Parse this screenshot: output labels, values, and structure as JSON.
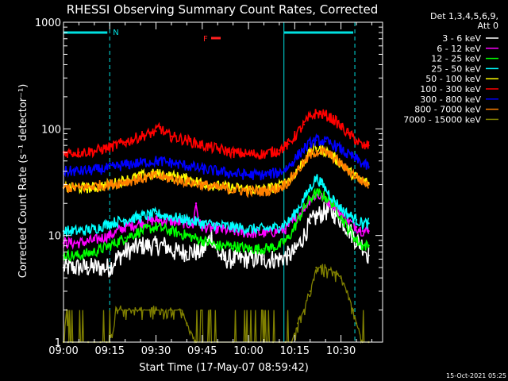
{
  "chart_data": {
    "type": "line",
    "title": "RHESSI Observing Summary Count Rates, Corrected",
    "xlabel": "Start Time (17-May-07 08:59:42)",
    "ylabel": "Corrected Count Rate (s⁻¹ detector⁻¹)",
    "yscale": "log",
    "ylim": [
      1,
      1000
    ],
    "xlim_minutes": [
      0,
      41
    ],
    "x_ticks": [
      {
        "m": 0,
        "label": "09:00"
      },
      {
        "m": 15,
        "label": "09:15"
      },
      {
        "m": 30,
        "label": "09:30"
      },
      {
        "m": 45,
        "label": "09:45"
      },
      {
        "m": 60,
        "label": "10:00"
      },
      {
        "m": 75,
        "label": "10:15"
      },
      {
        "m": 90,
        "label": "10:30"
      }
    ],
    "y_ticks": [
      {
        "v": 1,
        "label": "1"
      },
      {
        "v": 10,
        "label": "10"
      },
      {
        "v": 100,
        "label": "100"
      },
      {
        "v": 1000,
        "label": "1000"
      }
    ],
    "legend_header": [
      "Det 1,3,4,5,6,9,",
      "Att 0"
    ],
    "legend_position": "right",
    "annotations": {
      "night_label": "N",
      "flare_label": "F"
    },
    "timestamp": "15-Oct-2021 05:25",
    "series": [
      {
        "name": "3 - 6 keV",
        "color": "#ffffff",
        "x": [
          0,
          3,
          5,
          8,
          10,
          12,
          15,
          17,
          20,
          25,
          28,
          30,
          33,
          36,
          38,
          40,
          43,
          45,
          48,
          50,
          52,
          55,
          60,
          65,
          68,
          70,
          73,
          75,
          78,
          80,
          82,
          85,
          88,
          90,
          92,
          95,
          97,
          99
        ],
        "y": [
          5,
          5,
          5,
          5,
          5,
          5,
          5,
          6,
          7,
          8,
          8,
          8,
          8,
          7,
          7,
          7,
          7,
          7,
          10,
          7,
          6,
          6,
          6,
          6,
          6,
          6,
          6.5,
          7,
          10,
          13,
          15,
          17,
          16,
          14,
          12,
          9,
          8,
          6.5
        ]
      },
      {
        "name": "6 - 12 keV",
        "color": "#ff00ff",
        "x": [
          0,
          5,
          10,
          15,
          20,
          25,
          30,
          35,
          40,
          42,
          43,
          44,
          45,
          50,
          55,
          60,
          65,
          70,
          72,
          75,
          78,
          80,
          82,
          85,
          88,
          90,
          92,
          95,
          97,
          99
        ],
        "y": [
          8.5,
          8.5,
          9,
          10,
          12,
          13,
          14,
          13.5,
          13,
          12.5,
          20,
          13,
          12,
          11.5,
          11,
          10.5,
          10.5,
          11,
          11.5,
          14,
          18,
          22,
          24,
          22,
          19,
          16,
          14,
          12,
          11,
          11
        ]
      },
      {
        "name": "12 - 25 keV",
        "color": "#00ff00",
        "x": [
          0,
          5,
          10,
          15,
          20,
          25,
          30,
          35,
          40,
          45,
          50,
          55,
          60,
          65,
          70,
          73,
          75,
          78,
          80,
          82,
          85,
          88,
          90,
          92,
          95,
          97,
          99
        ],
        "y": [
          6.5,
          6.5,
          7,
          8,
          9.5,
          11,
          12,
          11,
          10,
          9,
          8,
          8,
          7.5,
          7.5,
          8,
          9.5,
          12,
          18,
          22,
          25,
          23,
          19,
          15,
          12,
          9,
          8,
          8
        ]
      },
      {
        "name": "25 - 50 keV",
        "color": "#00ffff",
        "x": [
          0,
          5,
          10,
          15,
          20,
          25,
          30,
          35,
          40,
          45,
          50,
          55,
          60,
          65,
          70,
          73,
          75,
          78,
          80,
          82,
          84,
          86,
          88,
          90,
          92,
          95,
          97,
          99
        ],
        "y": [
          11,
          11,
          11.5,
          13,
          14,
          15,
          16,
          15,
          14,
          13,
          12.5,
          12,
          11.5,
          11.5,
          12,
          13.5,
          16,
          22,
          28,
          35,
          30,
          25,
          21,
          18,
          16,
          14,
          13,
          13
        ]
      },
      {
        "name": "50 - 100 keV",
        "color": "#ffff00",
        "x": [
          0,
          5,
          10,
          15,
          20,
          25,
          30,
          35,
          40,
          45,
          50,
          55,
          60,
          65,
          70,
          73,
          75,
          78,
          80,
          82,
          85,
          88,
          90,
          92,
          95,
          97,
          99
        ],
        "y": [
          28,
          28,
          28,
          30,
          33,
          36,
          38,
          36,
          34,
          31,
          29,
          28,
          27,
          27,
          29,
          33,
          38,
          50,
          60,
          66,
          62,
          53,
          47,
          41,
          35,
          32,
          31
        ]
      },
      {
        "name": "100 - 300 keV",
        "color": "#ff0000",
        "x": [
          0,
          5,
          10,
          15,
          20,
          25,
          28,
          30,
          31,
          33,
          35,
          40,
          45,
          50,
          55,
          60,
          65,
          70,
          73,
          75,
          78,
          80,
          82,
          85,
          88,
          90,
          92,
          95,
          97,
          99
        ],
        "y": [
          60,
          60,
          62,
          67,
          75,
          85,
          90,
          95,
          105,
          90,
          85,
          78,
          70,
          65,
          60,
          58,
          58,
          63,
          72,
          85,
          110,
          130,
          140,
          135,
          120,
          105,
          92,
          78,
          68,
          70
        ]
      },
      {
        "name": "300 - 800 keV",
        "color": "#0000ff",
        "x": [
          0,
          5,
          10,
          15,
          20,
          25,
          30,
          35,
          40,
          45,
          50,
          55,
          60,
          65,
          70,
          73,
          75,
          78,
          80,
          82,
          85,
          88,
          90,
          92,
          95,
          97,
          99
        ],
        "y": [
          40,
          40,
          41,
          43,
          46,
          48,
          50,
          48,
          45,
          42,
          40,
          38,
          37,
          37,
          39,
          44,
          52,
          65,
          73,
          78,
          76,
          70,
          64,
          58,
          52,
          47,
          44
        ]
      },
      {
        "name": "800 - 7000 keV",
        "color": "#ff8000",
        "x": [
          0,
          5,
          10,
          15,
          20,
          25,
          30,
          35,
          40,
          45,
          50,
          55,
          60,
          65,
          70,
          73,
          75,
          78,
          80,
          82,
          85,
          88,
          90,
          92,
          95,
          97,
          99
        ],
        "y": [
          28,
          28,
          29,
          30,
          32,
          34,
          36,
          34,
          32,
          30,
          28,
          27,
          26,
          26,
          28,
          32,
          38,
          48,
          56,
          62,
          60,
          53,
          47,
          41,
          36,
          32,
          30
        ]
      },
      {
        "name": "7000 - 15000 keV",
        "color": "#808000",
        "x": [
          0,
          1,
          1.5,
          3,
          5,
          8,
          10,
          12,
          14,
          15,
          17,
          20,
          25,
          28,
          30,
          32,
          35,
          38,
          40,
          43,
          45,
          48,
          50,
          55,
          60,
          65,
          68,
          70,
          72,
          74,
          76,
          78,
          80,
          82,
          85,
          88,
          90,
          92,
          94,
          95,
          97,
          99
        ],
        "y": [
          1,
          2,
          1,
          1,
          1,
          1,
          1,
          1,
          1,
          1,
          2,
          2,
          2,
          2,
          2,
          2,
          2,
          2,
          1.5,
          1,
          1,
          1,
          1,
          1,
          1,
          1,
          1,
          1,
          1,
          1,
          1.5,
          2,
          3,
          5,
          5,
          4.5,
          4,
          3,
          2,
          1.5,
          1,
          1
        ]
      }
    ]
  }
}
